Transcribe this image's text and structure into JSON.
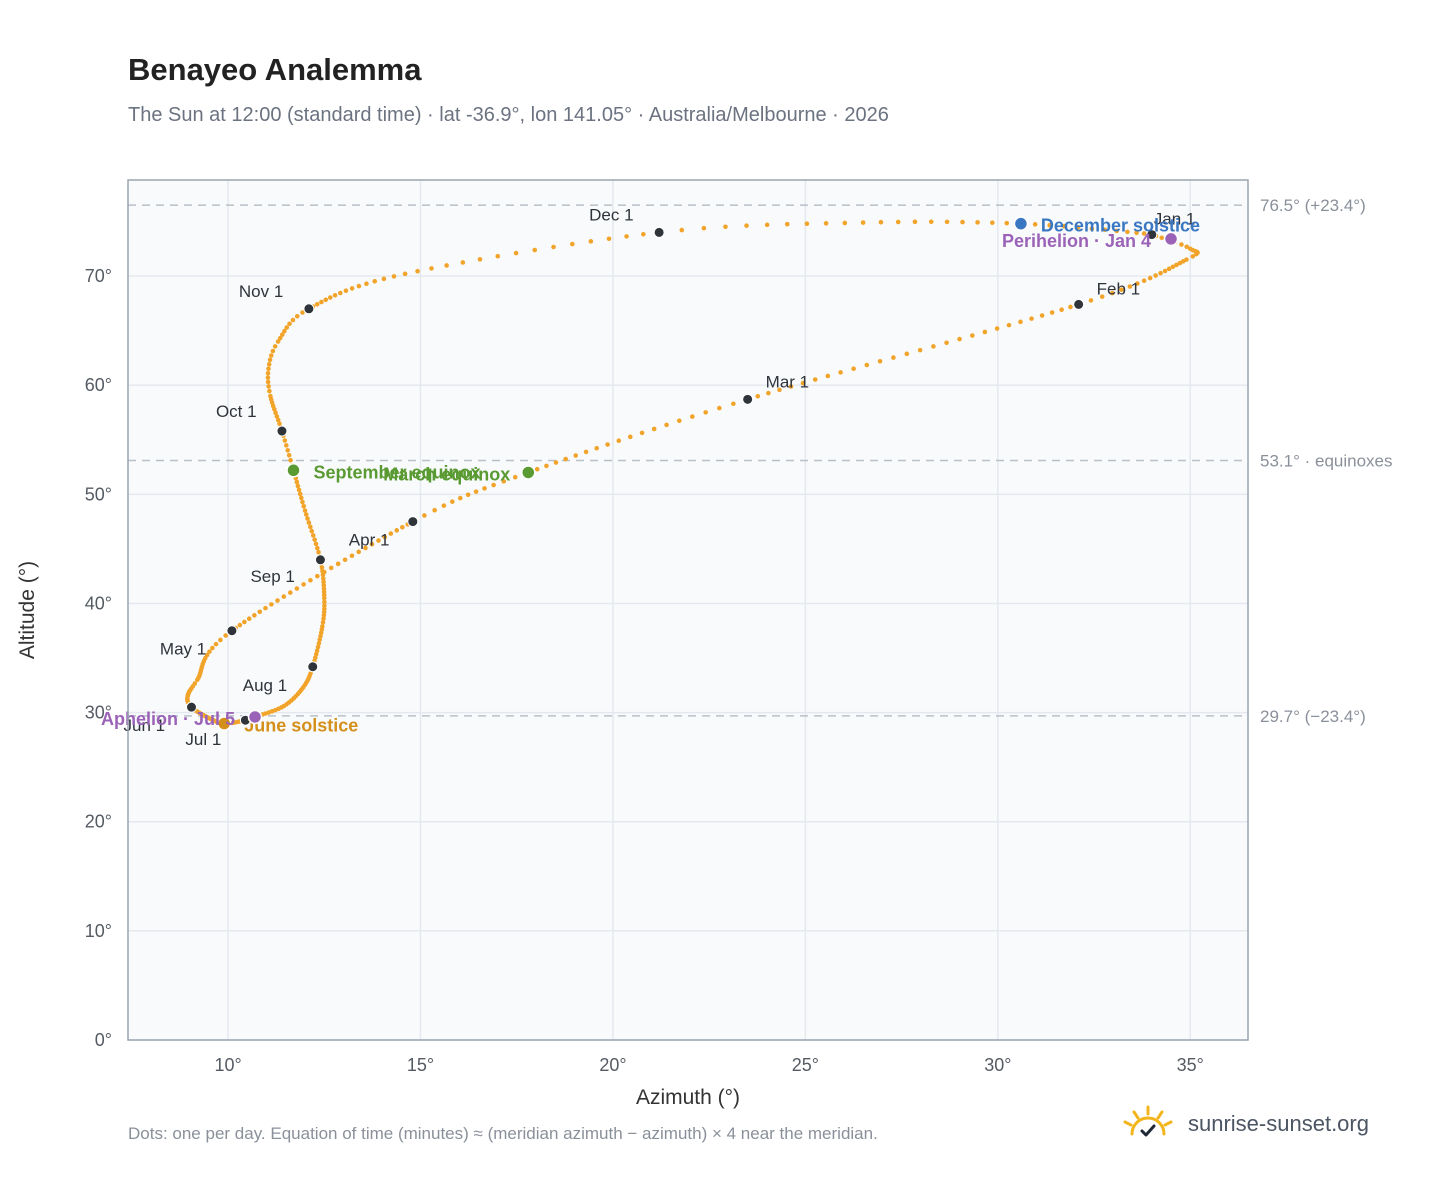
{
  "header": {
    "title": "Benayeo Analemma",
    "subtitle": "The Sun at 12:00 (standard time) · lat -36.9°, lon 141.05° · Australia/Melbourne · 2026"
  },
  "footer": {
    "note": "Dots: one per day. Equation of time (minutes) ≈ (meridian azimuth − azimuth) × 4 near the meridian.",
    "brand": "sunrise-sunset.org",
    "brand_icon": "sunrise-logo-icon"
  },
  "chart_data": {
    "type": "scatter",
    "title": "Benayeo Analemma",
    "xlabel": "Azimuth (°)",
    "ylabel": "Altitude (°)",
    "xlim": [
      7.4,
      36.5
    ],
    "ylim": [
      0,
      78.8
    ],
    "x_ticks": [
      10,
      15,
      20,
      25,
      30,
      35
    ],
    "x_tick_labels": [
      "10°",
      "15°",
      "20°",
      "25°",
      "30°",
      "35°"
    ],
    "y_ticks": [
      0,
      10,
      20,
      30,
      40,
      50,
      60,
      70
    ],
    "y_tick_labels": [
      "0°",
      "10°",
      "20°",
      "30°",
      "40°",
      "50°",
      "60°",
      "70°"
    ],
    "grid": true,
    "colors": {
      "curve": "#f2a42a",
      "month_dot": "#2f343b",
      "equinox": "#5a9a32",
      "june": "#d4901a",
      "december": "#3a77c2",
      "apsis": "#9b63b8",
      "reference": "#b9c0c8",
      "plot_bg": "#f8fafc",
      "frame": "#9aa5b1"
    },
    "path_keypoints": [
      {
        "day": 1,
        "az": 34.0,
        "alt": 73.8
      },
      {
        "day": 8,
        "az": 35.0,
        "alt": 72.5
      },
      {
        "day": 15,
        "az": 34.9,
        "alt": 71.5
      },
      {
        "day": 32,
        "az": 32.1,
        "alt": 67.4
      },
      {
        "day": 60,
        "az": 23.5,
        "alt": 58.7
      },
      {
        "day": 79,
        "az": 17.8,
        "alt": 52.0
      },
      {
        "day": 91,
        "az": 14.8,
        "alt": 47.5
      },
      {
        "day": 121,
        "az": 10.1,
        "alt": 37.5
      },
      {
        "day": 137,
        "az": 9.2,
        "alt": 33.0
      },
      {
        "day": 145,
        "az": 8.95,
        "alt": 31.5
      },
      {
        "day": 152,
        "az": 9.05,
        "alt": 30.5
      },
      {
        "day": 162,
        "az": 9.5,
        "alt": 29.5
      },
      {
        "day": 172,
        "az": 9.9,
        "alt": 29.0
      },
      {
        "day": 182,
        "az": 10.45,
        "alt": 29.3
      },
      {
        "day": 186,
        "az": 10.7,
        "alt": 29.6
      },
      {
        "day": 196,
        "az": 11.45,
        "alt": 30.6
      },
      {
        "day": 205,
        "az": 11.95,
        "alt": 32.3
      },
      {
        "day": 213,
        "az": 12.2,
        "alt": 34.2
      },
      {
        "day": 225,
        "az": 12.45,
        "alt": 37.9
      },
      {
        "day": 233,
        "az": 12.5,
        "alt": 40.5
      },
      {
        "day": 244,
        "az": 12.4,
        "alt": 44.0
      },
      {
        "day": 256,
        "az": 12.0,
        "alt": 48.5
      },
      {
        "day": 266,
        "az": 11.7,
        "alt": 52.2
      },
      {
        "day": 274,
        "az": 11.4,
        "alt": 55.8
      },
      {
        "day": 284,
        "az": 11.1,
        "alt": 59.0
      },
      {
        "day": 290,
        "az": 11.05,
        "alt": 61.5
      },
      {
        "day": 296,
        "az": 11.3,
        "alt": 64.0
      },
      {
        "day": 305,
        "az": 12.1,
        "alt": 67.0
      },
      {
        "day": 320,
        "az": 14.6,
        "alt": 70.2
      },
      {
        "day": 335,
        "az": 21.2,
        "alt": 74.0
      },
      {
        "day": 345,
        "az": 26.5,
        "alt": 74.9
      },
      {
        "day": 355,
        "az": 30.6,
        "alt": 74.8
      },
      {
        "day": 365,
        "az": 33.8,
        "alt": 73.9
      }
    ],
    "month_markers": [
      {
        "label": "Jan 1",
        "az": 34.0,
        "alt": 73.8,
        "dx": 2,
        "dy": -10
      },
      {
        "label": "Feb 1",
        "az": 32.1,
        "alt": 67.4,
        "dx": 18,
        "dy": -10
      },
      {
        "label": "Mar 1",
        "az": 23.5,
        "alt": 58.7,
        "dx": 18,
        "dy": -12
      },
      {
        "label": "Apr 1",
        "az": 14.8,
        "alt": 47.5,
        "dx": -64,
        "dy": 24
      },
      {
        "label": "May 1",
        "az": 10.1,
        "alt": 37.5,
        "dx": -72,
        "dy": 24
      },
      {
        "label": "Jun 1",
        "az": 9.05,
        "alt": 30.5,
        "dx": -68,
        "dy": 24
      },
      {
        "label": "Jul 1",
        "az": 10.45,
        "alt": 29.3,
        "dx": -60,
        "dy": 25
      },
      {
        "label": "Aug 1",
        "az": 12.2,
        "alt": 34.2,
        "dx": -70,
        "dy": 24
      },
      {
        "label": "Sep 1",
        "az": 12.4,
        "alt": 44.0,
        "dx": -70,
        "dy": 22
      },
      {
        "label": "Oct 1",
        "az": 11.4,
        "alt": 55.8,
        "dx": -66,
        "dy": -14
      },
      {
        "label": "Nov 1",
        "az": 12.1,
        "alt": 67.0,
        "dx": -70,
        "dy": -12
      },
      {
        "label": "Dec 1",
        "az": 21.2,
        "alt": 74.0,
        "dx": -70,
        "dy": -12
      }
    ],
    "events": [
      {
        "label": "March equinox",
        "az": 17.8,
        "alt": 52.0,
        "color": "#5a9a32",
        "anchor": "end",
        "dx": -18,
        "dy": 8
      },
      {
        "label": "September equinox",
        "az": 11.7,
        "alt": 52.2,
        "color": "#5a9a32",
        "anchor": "start",
        "dx": 20,
        "dy": 8
      },
      {
        "label": "June solstice",
        "az": 9.9,
        "alt": 29.0,
        "color": "#d4901a",
        "anchor": "start",
        "dx": 20,
        "dy": 8
      },
      {
        "label": "December solstice",
        "az": 30.6,
        "alt": 74.8,
        "color": "#3a77c2",
        "anchor": "start",
        "dx": 20,
        "dy": 8
      },
      {
        "label": "Perihelion · Jan 4",
        "az": 34.5,
        "alt": 73.4,
        "color": "#9b63b8",
        "anchor": "end",
        "dx": -20,
        "dy": 8
      },
      {
        "label": "Aphelion · Jul 5",
        "az": 10.7,
        "alt": 29.6,
        "color": "#9b63b8",
        "anchor": "end",
        "dx": -20,
        "dy": 8
      }
    ],
    "reference_lines": [
      {
        "alt": 76.5,
        "label": "76.5° (+23.4°)"
      },
      {
        "alt": 53.1,
        "label": "53.1° · equinoxes"
      },
      {
        "alt": 29.7,
        "label": "29.7° (−23.4°)"
      }
    ]
  }
}
